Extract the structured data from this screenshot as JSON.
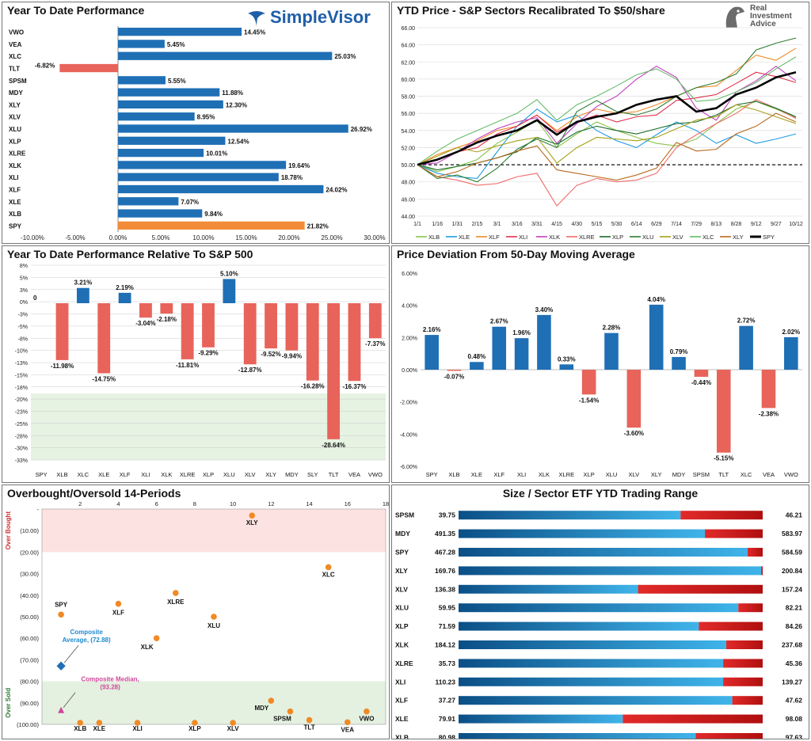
{
  "panels": {
    "ytd_perf": {
      "title": "Year To Date Performance",
      "logo_text": "SimpleVisor"
    },
    "ytd_price": {
      "title": "YTD Price - S&P Sectors Recalibrated To $50/share",
      "logo_line1": "Real",
      "logo_line2": "Investment",
      "logo_line3": "Advice"
    },
    "rel_perf": {
      "title": "Year To Date Performance Relative To S&P 500"
    },
    "deviation": {
      "title": "Price Deviation From 50-Day Moving Average"
    },
    "overbought": {
      "title": "Overbought/Oversold 14-Periods",
      "label_top": "Over Bought",
      "label_bottom": "Over Sold",
      "avg_label_1": "Composite",
      "avg_label_2": "Average, (72.88)",
      "median_label_1": "Composite Median,",
      "median_label_2": "(93.28)"
    },
    "range": {
      "title": "Size / Sector ETF YTD Trading Range"
    }
  },
  "chart_data": [
    {
      "id": "ytd_perf",
      "type": "bar",
      "orientation": "horizontal",
      "title": "Year To Date Performance",
      "categories": [
        "VWO",
        "VEA",
        "XLC",
        "TLT",
        "SPSM",
        "MDY",
        "XLY",
        "XLV",
        "XLU",
        "XLP",
        "XLRE",
        "XLK",
        "XLI",
        "XLF",
        "XLE",
        "XLB",
        "SPY"
      ],
      "values": [
        14.45,
        5.45,
        25.03,
        -6.82,
        5.55,
        11.88,
        12.3,
        8.95,
        26.92,
        12.54,
        10.01,
        19.64,
        18.78,
        24.02,
        7.07,
        9.84,
        21.82
      ],
      "value_labels": [
        "14.45%",
        "5.45%",
        "25.03%",
        "-6.82%",
        "5.55%",
        "11.88%",
        "12.30%",
        "8.95%",
        "26.92%",
        "12.54%",
        "10.01%",
        "19.64%",
        "18.78%",
        "24.02%",
        "7.07%",
        "9.84%",
        "21.82%"
      ],
      "xlim": [
        -10,
        30
      ],
      "xticks": [
        "-10.00%",
        "-5.00%",
        "0.00%",
        "5.00%",
        "10.00%",
        "15.00%",
        "20.00%",
        "25.00%",
        "30.00%"
      ],
      "colors": {
        "positive": "#1f6fb5",
        "negative": "#e8635a",
        "spy": "#f28c38"
      }
    },
    {
      "id": "ytd_price",
      "type": "line",
      "title": "YTD Price - S&P Sectors Recalibrated To $50/share",
      "x": [
        "1/1",
        "1/16",
        "1/31",
        "2/15",
        "3/1",
        "3/16",
        "3/31",
        "4/15",
        "4/30",
        "5/15",
        "5/30",
        "6/14",
        "6/29",
        "7/14",
        "7/29",
        "8/13",
        "8/28",
        "9/12",
        "9/27",
        "10/12"
      ],
      "ylim": [
        44,
        66
      ],
      "yticks": [
        "44.00",
        "46.00",
        "48.00",
        "50.00",
        "52.00",
        "54.00",
        "56.00",
        "58.00",
        "60.00",
        "62.00",
        "64.00",
        "66.00"
      ],
      "reference_line": 50,
      "series": [
        {
          "name": "XLB",
          "color": "#8bc34a",
          "values": [
            50,
            49.2,
            49.8,
            50.6,
            52.5,
            53.8,
            55.2,
            52.0,
            53.6,
            55.0,
            54.0,
            53.2,
            52.5,
            52.2,
            53.0,
            54.8,
            56.5,
            57.4,
            56.5,
            55.5
          ]
        },
        {
          "name": "XLE",
          "color": "#1e9be0",
          "values": [
            50,
            49.0,
            48.6,
            48.4,
            51.5,
            54.5,
            56.5,
            55.0,
            55.8,
            54.0,
            52.8,
            52.0,
            53.5,
            55.0,
            54.0,
            52.5,
            53.5,
            52.5,
            53.0,
            53.6
          ]
        },
        {
          "name": "XLF",
          "color": "#f08a24",
          "values": [
            50,
            51.2,
            52.0,
            52.8,
            54.0,
            54.5,
            55.8,
            54.0,
            55.6,
            56.5,
            56.0,
            56.2,
            57.0,
            58.0,
            59.0,
            59.2,
            61.0,
            62.8,
            62.2,
            63.6
          ]
        },
        {
          "name": "XLI",
          "color": "#e0304d",
          "values": [
            50,
            50.6,
            51.5,
            52.0,
            53.6,
            54.5,
            55.8,
            53.8,
            55.0,
            55.8,
            55.0,
            55.6,
            55.8,
            57.5,
            57.8,
            58.2,
            59.5,
            60.8,
            60.3,
            59.6
          ]
        },
        {
          "name": "XLK",
          "color": "#c040c0",
          "values": [
            50,
            50.2,
            51.5,
            53.0,
            54.2,
            55.0,
            55.5,
            52.5,
            54.8,
            56.8,
            58.0,
            60.0,
            61.5,
            60.2,
            56.6,
            55.2,
            58.5,
            59.8,
            61.5,
            59.8
          ]
        },
        {
          "name": "XLRE",
          "color": "#f06a6a",
          "values": [
            50,
            48.6,
            48.2,
            47.6,
            47.8,
            48.6,
            49.0,
            45.2,
            47.6,
            48.4,
            48.0,
            48.2,
            49.0,
            52.0,
            53.5,
            54.8,
            56.0,
            57.6,
            56.6,
            55.4
          ]
        },
        {
          "name": "XLP",
          "color": "#1a6b2a",
          "values": [
            50,
            49.4,
            49.8,
            50.2,
            50.8,
            51.5,
            53.2,
            52.4,
            53.8,
            54.5,
            54.0,
            53.6,
            54.2,
            54.8,
            55.0,
            55.8,
            57.0,
            57.4,
            56.6,
            55.6
          ]
        },
        {
          "name": "XLU",
          "color": "#2e7d32",
          "values": [
            50,
            48.4,
            48.8,
            48.0,
            49.6,
            51.8,
            53.0,
            52.0,
            56.2,
            57.5,
            56.2,
            55.8,
            56.5,
            58.0,
            59.0,
            59.6,
            60.6,
            63.4,
            64.2,
            64.8
          ]
        },
        {
          "name": "XLV",
          "color": "#a5a018",
          "values": [
            50,
            51.0,
            52.0,
            51.5,
            52.2,
            52.8,
            53.2,
            50.2,
            52.0,
            53.2,
            53.0,
            52.8,
            53.2,
            54.2,
            55.2,
            55.6,
            57.0,
            56.4,
            55.6,
            54.8
          ]
        },
        {
          "name": "XLC",
          "color": "#66bb6a",
          "values": [
            50,
            51.6,
            53.0,
            54.0,
            55.0,
            56.0,
            57.6,
            55.2,
            57.0,
            58.0,
            59.2,
            60.5,
            61.2,
            60.0,
            57.4,
            57.6,
            58.5,
            59.6,
            61.2,
            62.6
          ]
        },
        {
          "name": "XLY",
          "color": "#b86a1e",
          "values": [
            50,
            48.6,
            49.2,
            50.2,
            50.8,
            51.6,
            52.2,
            49.4,
            49.0,
            48.6,
            48.2,
            48.8,
            49.6,
            52.6,
            51.6,
            51.8,
            53.6,
            54.5,
            56.0,
            55.0
          ]
        },
        {
          "name": "SPY",
          "color": "#000000",
          "values": [
            50,
            50.6,
            51.5,
            52.6,
            53.4,
            54.0,
            55.2,
            53.5,
            55.0,
            55.6,
            56.0,
            57.0,
            57.6,
            58.0,
            56.2,
            56.6,
            58.2,
            59.0,
            60.2,
            60.8
          ]
        }
      ]
    },
    {
      "id": "rel_perf",
      "type": "bar",
      "title": "Year To Date Performance Relative To S&P 500",
      "categories": [
        "SPY",
        "XLB",
        "XLC",
        "XLE",
        "XLF",
        "XLI",
        "XLK",
        "XLRE",
        "XLP",
        "XLU",
        "XLV",
        "XLY",
        "MDY",
        "SLY",
        "TLT",
        "VEA",
        "VWO"
      ],
      "values": [
        0,
        -11.98,
        3.21,
        -14.75,
        2.19,
        -3.04,
        -2.18,
        -11.81,
        -9.29,
        5.1,
        -12.87,
        -9.52,
        -9.94,
        -16.28,
        -28.64,
        -16.37,
        -7.37
      ],
      "value_labels": [
        "0",
        "-11.98%",
        "3.21%",
        "-14.75%",
        "2.19%",
        "-3.04%",
        "-2.18%",
        "-11.81%",
        "-9.29%",
        "5.10%",
        "-12.87%",
        "-9.52%",
        "-9.94%",
        "-16.28%",
        "-28.64%",
        "-16.37%",
        "-7.37%"
      ],
      "ylim": [
        -33,
        8
      ],
      "yticks": [
        "8%",
        "5%",
        "3%",
        "0%",
        "-3%",
        "-5%",
        "-8%",
        "-10%",
        "-13%",
        "-15%",
        "-18%",
        "-20%",
        "-23%",
        "-25%",
        "-28%",
        "-30%",
        "-33%"
      ],
      "shaded_band": [
        -33,
        -19
      ]
    },
    {
      "id": "deviation",
      "type": "bar",
      "title": "Price Deviation From 50-Day Moving Average",
      "categories": [
        "SPY",
        "XLB",
        "XLE",
        "XLF",
        "XLI",
        "XLK",
        "XLRE",
        "XLP",
        "XLU",
        "XLV",
        "XLY",
        "MDY",
        "SPSM",
        "TLT",
        "XLC",
        "VEA",
        "VWO"
      ],
      "values": [
        2.16,
        -0.07,
        0.48,
        2.67,
        1.96,
        3.4,
        0.33,
        -1.54,
        2.28,
        -3.6,
        4.04,
        0.79,
        -0.44,
        -5.15,
        2.72,
        -2.38,
        2.02
      ],
      "value_labels": [
        "2.16%",
        "-0.07%",
        "0.48%",
        "2.67%",
        "1.96%",
        "3.40%",
        "0.33%",
        "-1.54%",
        "2.28%",
        "-3.60%",
        "4.04%",
        "0.79%",
        "-0.44%",
        "-5.15%",
        "2.72%",
        "-2.38%",
        "2.02%"
      ],
      "ylim": [
        -6,
        6
      ],
      "yticks": [
        "6.00%",
        "4.00%",
        "2.00%",
        "0.00%",
        "-2.00%",
        "-4.00%",
        "-6.00%"
      ]
    },
    {
      "id": "overbought",
      "type": "scatter",
      "title": "Overbought/Oversold 14-Periods",
      "xlim": [
        0,
        18
      ],
      "xticks": [
        "2",
        "4",
        "6",
        "8",
        "10",
        "12",
        "14",
        "16",
        "18"
      ],
      "ylim": [
        0,
        -100
      ],
      "yticks": [
        "-",
        "(10.00)",
        "(20.00)",
        "(30.00)",
        "(40.00)",
        "(50.00)",
        "(60.00)",
        "(70.00)",
        "(80.00)",
        "(90.00)",
        "(100.00)"
      ],
      "overbought_band": [
        0,
        -20
      ],
      "oversold_band": [
        -80,
        -100
      ],
      "points": [
        {
          "label": "XLY",
          "x": 11,
          "y": -3
        },
        {
          "label": "XLC",
          "x": 15,
          "y": -27
        },
        {
          "label": "XLRE",
          "x": 7,
          "y": -39
        },
        {
          "label": "XLF",
          "x": 4,
          "y": -44
        },
        {
          "label": "SPY",
          "x": 1,
          "y": -49
        },
        {
          "label": "XLU",
          "x": 9,
          "y": -50
        },
        {
          "label": "XLK",
          "x": 6,
          "y": -60
        },
        {
          "label": "MDY",
          "x": 12,
          "y": -89
        },
        {
          "label": "SPSM",
          "x": 13,
          "y": -94
        },
        {
          "label": "TLT",
          "x": 14,
          "y": -98
        },
        {
          "label": "VEA",
          "x": 16,
          "y": -99
        },
        {
          "label": "VWO",
          "x": 17,
          "y": -94
        },
        {
          "label": "XLB",
          "x": 2,
          "y": -100
        },
        {
          "label": "XLE",
          "x": 3,
          "y": -100
        },
        {
          "label": "XLI",
          "x": 5,
          "y": -100
        },
        {
          "label": "XLP",
          "x": 8,
          "y": -100
        },
        {
          "label": "XLV",
          "x": 10,
          "y": -100
        }
      ],
      "composite_average": {
        "x": 1,
        "y": -72.88
      },
      "composite_median": {
        "x": 1,
        "y": -93.28
      }
    },
    {
      "id": "range",
      "type": "bar",
      "title": "Size / Sector ETF YTD Trading Range",
      "rows": [
        {
          "name": "SPSM",
          "low": "39.75",
          "high": "46.21",
          "position": 0.73
        },
        {
          "name": "MDY",
          "low": "491.35",
          "high": "583.97",
          "position": 0.81
        },
        {
          "name": "SPY",
          "low": "467.28",
          "high": "584.59",
          "position": 0.95
        },
        {
          "name": "XLY",
          "low": "169.76",
          "high": "200.84",
          "position": 0.995
        },
        {
          "name": "XLV",
          "low": "136.38",
          "high": "157.24",
          "position": 0.59
        },
        {
          "name": "XLU",
          "low": "59.95",
          "high": "82.21",
          "position": 0.92
        },
        {
          "name": "XLP",
          "low": "71.59",
          "high": "84.26",
          "position": 0.79
        },
        {
          "name": "XLK",
          "low": "184.12",
          "high": "237.68",
          "position": 0.88
        },
        {
          "name": "XLRE",
          "low": "35.73",
          "high": "45.36",
          "position": 0.87
        },
        {
          "name": "XLI",
          "low": "110.23",
          "high": "139.27",
          "position": 0.87
        },
        {
          "name": "XLF",
          "low": "37.27",
          "high": "47.62",
          "position": 0.9
        },
        {
          "name": "XLE",
          "low": "79.91",
          "high": "98.08",
          "position": 0.54
        },
        {
          "name": "XLB",
          "low": "80.98",
          "high": "97.63",
          "position": 0.78
        }
      ]
    }
  ]
}
